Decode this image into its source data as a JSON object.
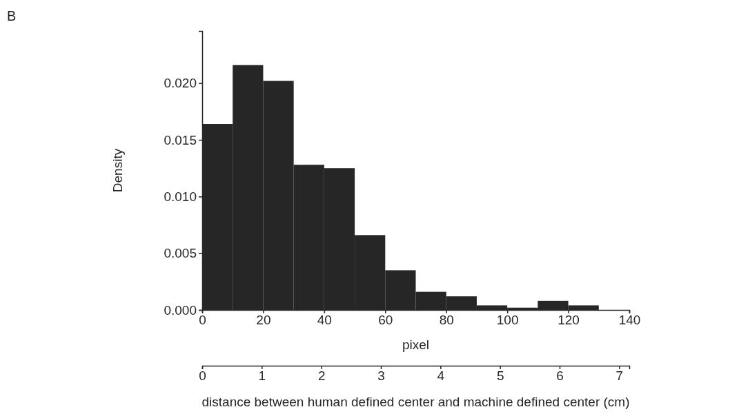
{
  "chart_data": {
    "type": "histogram",
    "bins": [
      0,
      10,
      20,
      30,
      40,
      50,
      60,
      70,
      80,
      90,
      100,
      110,
      120,
      130,
      140
    ],
    "values": [
      0.0164,
      0.0216,
      0.0202,
      0.0128,
      0.0125,
      0.0066,
      0.0035,
      0.0016,
      0.0012,
      0.0004,
      0.0002,
      0.0008,
      0.0004,
      0
    ],
    "color": "#262626",
    "xlabel": "pixel",
    "ylabel": "Density",
    "xlim": [
      0,
      140
    ],
    "xticks": [
      0,
      20,
      40,
      60,
      80,
      100,
      120,
      140
    ],
    "ylim": [
      0,
      0.0246
    ],
    "yticks": [
      {
        "value": 0,
        "label": "0.000"
      },
      {
        "value": 0.005,
        "label": "0.005"
      },
      {
        "value": 0.01,
        "label": "0.010"
      },
      {
        "value": 0.015,
        "label": "0.015"
      },
      {
        "value": 0.02,
        "label": "0.020"
      }
    ],
    "x2lim": [
      0,
      7.17
    ],
    "x2ticks": [
      0,
      1,
      2,
      3,
      4,
      5,
      6,
      7
    ],
    "x2label": "distance between human defined center and machine defined center (cm)",
    "annotations": [
      "B"
    ],
    "grid": false
  }
}
